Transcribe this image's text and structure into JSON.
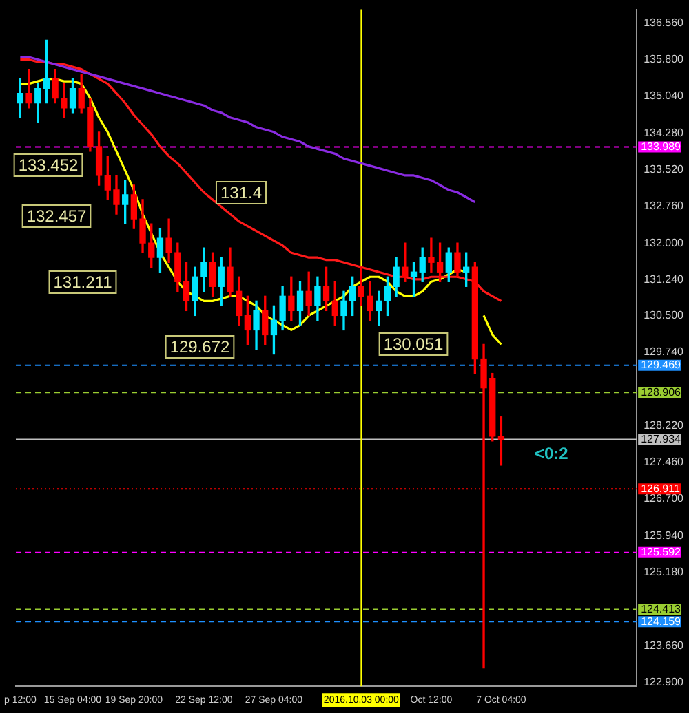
{
  "chart_data": {
    "type": "candlestick",
    "categories": [
      "p 12:00",
      null,
      null,
      null,
      null,
      null,
      "15 Sep 04:00",
      null,
      null,
      null,
      null,
      null,
      null,
      "19 Sep 20:00",
      null,
      null,
      null,
      null,
      null,
      null,
      null,
      "22 Sep 12:00",
      null,
      null,
      null,
      null,
      null,
      null,
      null,
      "27 Sep 04:00",
      null,
      null,
      null,
      null,
      null,
      null,
      null,
      null,
      null,
      "2016.10.03 00:00",
      null,
      null,
      null,
      null,
      null,
      null,
      null,
      "Oct 12:00",
      null,
      null,
      null,
      null,
      null,
      null,
      null,
      "7 Oct 04:00",
      null,
      null,
      null,
      null,
      null,
      null,
      null,
      null,
      null,
      null,
      null,
      null,
      null,
      null,
      null
    ],
    "ohlc": [
      [
        134.9,
        135.4,
        134.6,
        135.1
      ],
      [
        135.1,
        135.6,
        134.8,
        134.9
      ],
      [
        134.9,
        135.3,
        134.5,
        135.2
      ],
      [
        135.2,
        136.2,
        134.9,
        135.4
      ],
      [
        135.4,
        135.6,
        134.9,
        135.0
      ],
      [
        135.0,
        135.3,
        134.6,
        134.8
      ],
      [
        134.8,
        135.4,
        134.7,
        135.2
      ],
      [
        135.2,
        135.5,
        134.7,
        134.8
      ],
      [
        134.8,
        135.0,
        133.9,
        134.0
      ],
      [
        134.0,
        134.3,
        133.2,
        133.4
      ],
      [
        133.4,
        133.8,
        132.9,
        133.1
      ],
      [
        133.1,
        133.4,
        132.6,
        132.8
      ],
      [
        132.8,
        133.3,
        132.4,
        133.0
      ],
      [
        133.0,
        133.2,
        132.3,
        132.5
      ],
      [
        132.5,
        132.9,
        131.8,
        132.0
      ],
      [
        132.0,
        132.4,
        131.5,
        131.7
      ],
      [
        131.7,
        132.3,
        131.4,
        132.1
      ],
      [
        132.1,
        132.5,
        131.6,
        131.8
      ],
      [
        131.8,
        132.0,
        131.0,
        131.2
      ],
      [
        131.2,
        131.6,
        130.6,
        130.8
      ],
      [
        130.8,
        131.5,
        130.5,
        131.3
      ],
      [
        131.3,
        131.9,
        131.0,
        131.6
      ],
      [
        131.6,
        131.8,
        130.9,
        131.1
      ],
      [
        131.1,
        131.7,
        130.7,
        131.5
      ],
      [
        131.5,
        131.9,
        130.9,
        131.0
      ],
      [
        131.0,
        131.3,
        130.3,
        130.5
      ],
      [
        130.5,
        130.9,
        129.9,
        130.2
      ],
      [
        130.2,
        130.8,
        129.8,
        130.6
      ],
      [
        130.6,
        130.9,
        129.9,
        130.1
      ],
      [
        130.1,
        130.7,
        129.7,
        130.4
      ],
      [
        130.4,
        131.1,
        130.2,
        130.9
      ],
      [
        130.9,
        131.3,
        130.4,
        130.6
      ],
      [
        130.6,
        131.2,
        130.3,
        131.0
      ],
      [
        131.0,
        131.4,
        130.5,
        130.7
      ],
      [
        130.7,
        131.3,
        130.4,
        131.1
      ],
      [
        131.1,
        131.5,
        130.6,
        130.8
      ],
      [
        130.8,
        131.2,
        130.3,
        130.5
      ],
      [
        130.5,
        131.0,
        130.2,
        130.8
      ],
      [
        130.8,
        131.3,
        130.5,
        131.1
      ],
      [
        131.1,
        131.5,
        130.7,
        130.9
      ],
      [
        130.9,
        131.2,
        130.4,
        130.6
      ],
      [
        130.6,
        131.0,
        130.3,
        130.8
      ],
      [
        130.8,
        131.3,
        130.5,
        131.1
      ],
      [
        131.1,
        131.7,
        130.9,
        131.5
      ],
      [
        131.5,
        132.0,
        131.2,
        131.3
      ],
      [
        131.3,
        131.6,
        130.9,
        131.4
      ],
      [
        131.4,
        131.9,
        131.2,
        131.7
      ],
      [
        131.7,
        132.1,
        131.4,
        131.6
      ],
      [
        131.6,
        132.0,
        131.2,
        131.4
      ],
      [
        131.4,
        131.9,
        131.2,
        131.8
      ],
      [
        131.8,
        132.0,
        131.3,
        131.4
      ],
      [
        131.4,
        131.8,
        131.1,
        131.5
      ],
      [
        131.5,
        131.6,
        129.3,
        129.6
      ],
      [
        129.6,
        129.9,
        123.2,
        129.0
      ],
      [
        129.2,
        129.3,
        127.9,
        128.0
      ],
      [
        128.0,
        128.4,
        127.4,
        127.93
      ],
      null,
      null,
      null,
      null,
      null,
      null,
      null,
      null,
      null,
      null,
      null,
      null,
      null,
      null,
      null
    ],
    "colors": [
      "#00e5ff",
      "#ff0000",
      "#00e5ff",
      "#00e5ff",
      "#ff0000",
      "#ff0000",
      "#00e5ff",
      "#ff0000",
      "#ff0000",
      "#ff0000",
      "#ff0000",
      "#ff0000",
      "#00e5ff",
      "#ff0000",
      "#ff0000",
      "#ff0000",
      "#00e5ff",
      "#ff0000",
      "#ff0000",
      "#ff0000",
      "#00e5ff",
      "#00e5ff",
      "#ff0000",
      "#00e5ff",
      "#ff0000",
      "#ff0000",
      "#ff0000",
      "#00e5ff",
      "#ff0000",
      "#00e5ff",
      "#00e5ff",
      "#ff0000",
      "#00e5ff",
      "#ff0000",
      "#00e5ff",
      "#ff0000",
      "#ff0000",
      "#00e5ff",
      "#00e5ff",
      "#ff0000",
      "#ff0000",
      "#00e5ff",
      "#00e5ff",
      "#00e5ff",
      "#ff0000",
      "#00e5ff",
      "#00e5ff",
      "#ff0000",
      "#ff0000",
      "#00e5ff",
      "#ff0000",
      "#00e5ff",
      "#ff0000",
      "#ff0000",
      "#ff0000",
      "#ff0000",
      null,
      null,
      null,
      null,
      null,
      null,
      null,
      null,
      null,
      null,
      null,
      null,
      null,
      null,
      null
    ],
    "series": [
      {
        "type": "line",
        "color": "#8a2be2",
        "values": [
          135.85,
          135.85,
          135.8,
          135.75,
          135.7,
          135.65,
          135.6,
          135.55,
          135.5,
          135.45,
          135.4,
          135.35,
          135.3,
          135.25,
          135.2,
          135.15,
          135.1,
          135.05,
          135.0,
          134.95,
          134.9,
          134.85,
          134.75,
          134.7,
          134.6,
          134.55,
          134.5,
          134.4,
          134.35,
          134.3,
          134.2,
          134.15,
          134.1,
          134.0,
          133.95,
          133.9,
          133.85,
          133.75,
          133.7,
          133.65,
          133.6,
          133.55,
          133.5,
          133.45,
          133.4,
          133.4,
          133.35,
          133.3,
          133.2,
          133.1,
          133.05,
          132.95,
          132.85,
          null,
          null,
          null,
          null,
          null,
          null,
          null,
          null,
          null,
          null,
          null,
          null,
          null,
          null,
          null,
          null,
          null,
          null
        ]
      },
      {
        "type": "line",
        "color": "#ff1a1a",
        "values": [
          135.8,
          135.8,
          135.75,
          135.75,
          135.7,
          135.7,
          135.65,
          135.6,
          135.5,
          135.4,
          135.3,
          135.1,
          134.9,
          134.65,
          134.45,
          134.25,
          134.0,
          133.8,
          133.65,
          133.45,
          133.25,
          133.05,
          132.9,
          132.75,
          132.6,
          132.45,
          132.35,
          132.25,
          132.15,
          132.05,
          131.95,
          131.8,
          131.75,
          131.7,
          131.7,
          131.65,
          131.65,
          131.6,
          131.55,
          131.5,
          131.45,
          131.4,
          131.35,
          131.3,
          131.3,
          131.25,
          131.25,
          131.3,
          131.3,
          131.3,
          131.3,
          131.25,
          131.2,
          131.0,
          130.9,
          130.8,
          null,
          null,
          null,
          null,
          null,
          null,
          null,
          null,
          null,
          null,
          null,
          null,
          null,
          null,
          null
        ]
      },
      {
        "type": "line",
        "color": "#ffff00",
        "values": [
          135.3,
          135.3,
          135.35,
          135.4,
          135.4,
          135.35,
          135.35,
          135.3,
          135.0,
          134.6,
          134.3,
          133.9,
          133.5,
          133.1,
          132.6,
          132.2,
          131.8,
          131.5,
          131.2,
          131.0,
          130.9,
          130.8,
          130.8,
          130.85,
          130.9,
          130.9,
          130.8,
          130.7,
          130.5,
          130.4,
          130.3,
          130.2,
          130.3,
          130.5,
          130.6,
          130.7,
          130.8,
          130.9,
          131.1,
          131.2,
          131.3,
          131.3,
          131.2,
          131.0,
          130.9,
          130.9,
          131.0,
          131.2,
          131.25,
          131.35,
          131.45,
          131.4,
          null,
          130.5,
          130.1,
          129.9,
          null,
          null,
          null,
          null,
          null,
          null,
          null,
          null,
          null,
          null,
          null,
          null,
          null,
          null,
          null
        ]
      }
    ],
    "ylim": [
      122.82,
      136.84
    ],
    "yticks": [
      {
        "value": 136.56,
        "label": "136.560"
      },
      {
        "value": 135.8,
        "label": "135.800"
      },
      {
        "value": 135.04,
        "label": "135.040"
      },
      {
        "value": 134.28,
        "label": "134.280"
      },
      {
        "value": 133.52,
        "label": "133.520"
      },
      {
        "value": 132.76,
        "label": "132.760"
      },
      {
        "value": 132.0,
        "label": "132.000"
      },
      {
        "value": 131.24,
        "label": "131.240"
      },
      {
        "value": 130.5,
        "label": "130.500"
      },
      {
        "value": 129.74,
        "label": "129.740"
      },
      {
        "value": 128.22,
        "label": "128.220"
      },
      {
        "value": 127.46,
        "label": "127.460"
      },
      {
        "value": 126.7,
        "label": "126.700"
      },
      {
        "value": 125.94,
        "label": "125.940"
      },
      {
        "value": 125.18,
        "label": "125.180"
      },
      {
        "value": 123.66,
        "label": "123.660"
      },
      {
        "value": 122.9,
        "label": "122.900"
      }
    ],
    "ref_lines": [
      {
        "axis": "y",
        "value": 133.989,
        "label": "133.989",
        "color": "#ff00ff",
        "line_style": "dashed"
      },
      {
        "axis": "y",
        "value": 129.469,
        "label": "129.469",
        "color": "#1e90ff",
        "line_style": "dashed"
      },
      {
        "axis": "y",
        "value": 128.906,
        "label": "128.906",
        "color": "#9acd32",
        "line_style": "dashed"
      },
      {
        "axis": "y",
        "value": 127.934,
        "label": "127.934",
        "color": "#c0c0c0",
        "line_style": "solid"
      },
      {
        "axis": "y",
        "value": 126.911,
        "label": "126.911",
        "color": "#ff0000",
        "line_style": "dotted"
      },
      {
        "axis": "y",
        "value": 125.592,
        "label": "125.592",
        "color": "#ff00ff",
        "line_style": "dashed"
      },
      {
        "axis": "y",
        "value": 124.413,
        "label": "124.413",
        "color": "#9acd32",
        "line_style": "dashed"
      },
      {
        "axis": "y",
        "value": 124.159,
        "label": "124.159",
        "color": "#1e90ff",
        "line_style": "dashed"
      },
      {
        "axis": "x",
        "value": "2016.10.03 00:00",
        "color": "#ffff00",
        "line_style": "solid"
      }
    ],
    "annotations": [
      "133.452",
      "132.457",
      "131.211",
      "131.4",
      "130.051",
      "129.672",
      "<0:2"
    ],
    "grid": false,
    "legend": false,
    "marker": "none",
    "line_style": "solid"
  }
}
